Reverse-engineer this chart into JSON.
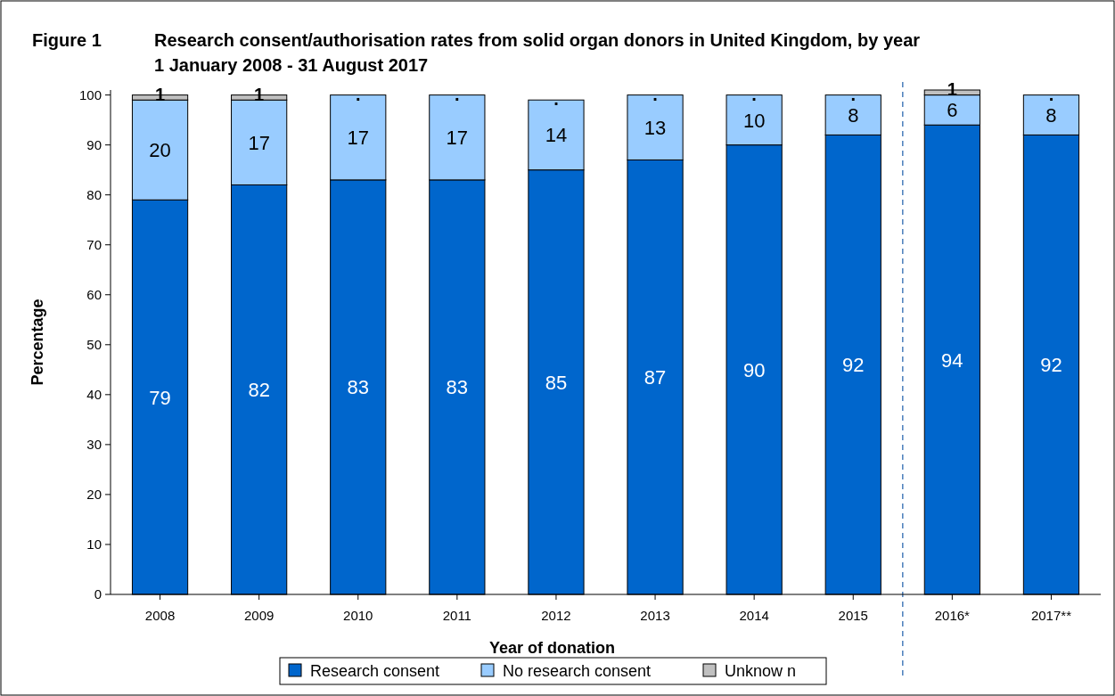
{
  "chart_data": {
    "type": "bar",
    "stacked": true,
    "title": "Research consent/authorisation rates from solid organ donors in United Kingdom, by year",
    "subtitle": "1 January 2008 - 31 August 2017",
    "annotations": [
      "Figure 1"
    ],
    "xlabel": "Year of donation",
    "ylabel": "Percentage",
    "categories": [
      "2008",
      "2009",
      "2010",
      "2011",
      "2012",
      "2013",
      "2014",
      "2015",
      "2016*",
      "2017**"
    ],
    "series": [
      {
        "name": "Research consent",
        "color": "#0066cc",
        "values": [
          79,
          82,
          83,
          83,
          85,
          87,
          90,
          92,
          94,
          92
        ],
        "value_labels": [
          "79",
          "82",
          "83",
          "83",
          "85",
          "87",
          "90",
          "92",
          "94",
          "92"
        ]
      },
      {
        "name": "No research consent",
        "color": "#99ccff",
        "values": [
          20,
          17,
          17,
          17,
          14,
          13,
          10,
          8,
          6,
          8
        ],
        "value_labels": [
          "20",
          "17",
          "17",
          "17",
          "14",
          "13",
          "10",
          "8",
          "6",
          "8"
        ]
      },
      {
        "name": "Unknow n",
        "color": "#c0c0c0",
        "values": [
          1,
          1,
          0,
          0,
          0,
          0,
          0,
          0,
          1,
          0
        ],
        "value_labels": [
          "1",
          "1",
          ".",
          ".",
          ".",
          ".",
          ".",
          ".",
          "1",
          "."
        ]
      }
    ],
    "ylim": [
      0,
      101
    ],
    "yticks": [
      0,
      10,
      20,
      30,
      40,
      50,
      60,
      70,
      80,
      90,
      100
    ],
    "grid": false,
    "legend": "bottom"
  }
}
